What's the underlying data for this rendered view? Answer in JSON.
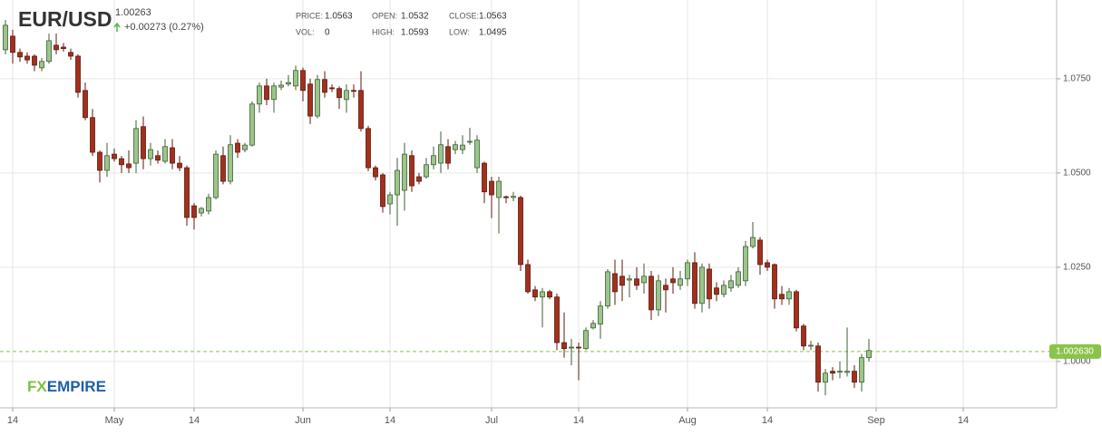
{
  "header": {
    "symbol": "EUR/USD",
    "last": 1.00263,
    "change": "+0.00273 (0.27%)",
    "stats": [
      {
        "label": "PRICE:",
        "value": 1.0563
      },
      {
        "label": "OPEN:",
        "value": 1.0532
      },
      {
        "label": "CLOSE:",
        "value": 1.0563
      },
      {
        "label": "VOL:",
        "value": 0
      },
      {
        "label": "HIGH:",
        "value": 1.0593
      },
      {
        "label": "LOW:",
        "value": 1.0495
      }
    ]
  },
  "brand": {
    "prefix": "FX",
    "name": "EMPIRE"
  },
  "chart_data": {
    "type": "candlestick",
    "up_color": "#9cc58c",
    "down_color": "#a3301c",
    "grid": true,
    "ylim": [
      0.9877,
      1.0959
    ],
    "yticks": [
      {
        "value": 1.075,
        "label": "1.0750"
      },
      {
        "value": 1.05,
        "label": "1.0500"
      },
      {
        "value": 1.025,
        "label": "1.0250"
      },
      {
        "value": 1.0,
        "label": "1.0000"
      }
    ],
    "last_price": {
      "value": 1.00263,
      "label": "1.002630"
    },
    "categories": [
      null,
      "14",
      null,
      null,
      null,
      null,
      null,
      null,
      null,
      null,
      null,
      null,
      null,
      null,
      null,
      "May",
      null,
      null,
      null,
      null,
      null,
      null,
      null,
      null,
      null,
      null,
      "14",
      null,
      null,
      null,
      null,
      null,
      null,
      null,
      null,
      null,
      null,
      null,
      null,
      null,
      null,
      "Jun",
      null,
      null,
      null,
      null,
      null,
      null,
      null,
      null,
      null,
      null,
      null,
      "14",
      null,
      null,
      null,
      null,
      null,
      null,
      null,
      null,
      null,
      null,
      null,
      null,
      null,
      "Jul",
      null,
      null,
      null,
      null,
      null,
      null,
      null,
      null,
      null,
      null,
      null,
      "14",
      null,
      null,
      null,
      null,
      null,
      null,
      null,
      null,
      null,
      null,
      null,
      null,
      null,
      null,
      "Aug",
      null,
      null,
      null,
      null,
      null,
      null,
      null,
      null,
      null,
      null,
      "14",
      null,
      null,
      null,
      null,
      null,
      null,
      null,
      null,
      null,
      null,
      null,
      null,
      null,
      null,
      "Sep",
      null,
      null,
      null,
      null,
      null,
      null,
      null,
      null,
      null,
      null,
      null,
      "14",
      null,
      null,
      null,
      null,
      null,
      null,
      null,
      null,
      null,
      null,
      null,
      null
    ],
    "open": [
      1.0827,
      1.0863,
      1.082,
      1.081,
      1.081,
      1.0779,
      1.0796,
      1.0839,
      1.0834,
      1.082,
      1.081,
      1.0719,
      1.0647,
      1.0555,
      1.0507,
      1.055,
      1.0538,
      1.0524,
      1.0526,
      1.0623,
      1.0538,
      1.0546,
      1.0531,
      1.0567,
      1.0526,
      1.0514,
      1.0413,
      1.0394,
      1.0399,
      1.0435,
      1.0546,
      1.0478,
      1.0579,
      1.0562,
      1.0574,
      1.0683,
      1.0731,
      1.0695,
      1.0728,
      1.0736,
      1.0731,
      1.0772,
      1.0736,
      1.0651,
      1.0748,
      1.0726,
      1.0724,
      1.0695,
      1.0719,
      1.0719,
      1.0618,
      1.0514,
      1.0495,
      1.0418,
      1.0442,
      1.0454,
      1.0546,
      1.049,
      1.049,
      1.0522,
      1.0526,
      1.057,
      1.0562,
      1.0562,
      1.0582,
      1.0514,
      1.0526,
      1.0478,
      1.0435,
      1.0437,
      1.0435,
      1.0435,
      1.0257,
      1.019,
      1.0171,
      1.0185,
      1.0171,
      1.005,
      1.0036,
      1.0038,
      1.0034,
      1.0089,
      1.0099,
      1.0147,
      1.0233,
      1.0226,
      1.0216,
      1.0219,
      1.0209,
      1.0226,
      1.0137,
      1.0202,
      1.0219,
      1.0202,
      1.0219,
      1.0262,
      1.0154,
      1.0245,
      1.0195,
      1.0178,
      1.0195,
      1.0202,
      1.0214,
      1.0305,
      1.0322,
      1.0262,
      1.0257,
      1.0178,
      1.0166,
      1.0185,
      1.0094,
      1.0041,
      1.0041,
      0.9945,
      0.9974,
      0.9972,
      0.9971,
      0.9974,
      0.9945,
      1.001,
      null,
      null,
      null,
      null,
      null,
      null,
      null,
      null,
      null,
      null,
      null,
      null,
      null,
      null,
      null,
      null,
      null,
      null,
      null,
      null,
      null,
      null,
      null,
      null,
      null
    ],
    "high": [
      1.0906,
      1.088,
      1.083,
      1.082,
      1.0815,
      1.0805,
      1.087,
      1.087,
      1.0845,
      1.083,
      1.0815,
      1.074,
      1.067,
      1.056,
      1.058,
      1.0565,
      1.0545,
      1.056,
      1.064,
      1.065,
      1.058,
      1.056,
      1.059,
      1.059,
      1.0545,
      1.052,
      1.042,
      1.041,
      1.0445,
      1.056,
      1.057,
      1.06,
      1.059,
      1.058,
      1.069,
      1.074,
      1.075,
      1.074,
      1.0745,
      1.076,
      1.0785,
      1.078,
      1.075,
      1.076,
      1.077,
      1.0735,
      1.073,
      1.0735,
      1.0735,
      1.077,
      1.0625,
      1.052,
      1.05,
      1.045,
      1.054,
      1.058,
      1.056,
      1.05,
      1.054,
      1.057,
      1.061,
      1.059,
      1.0585,
      1.06,
      1.062,
      1.06,
      1.053,
      1.049,
      1.049,
      1.044,
      1.045,
      1.044,
      1.027,
      1.02,
      1.0195,
      1.019,
      1.018,
      1.013,
      1.006,
      1.005,
      1.009,
      1.011,
      1.016,
      1.0245,
      1.027,
      1.027,
      1.023,
      1.025,
      1.026,
      1.024,
      1.023,
      1.022,
      1.025,
      1.024,
      1.027,
      1.029,
      1.026,
      1.026,
      1.021,
      1.0215,
      1.023,
      1.025,
      1.032,
      1.037,
      1.033,
      1.027,
      1.026,
      1.02,
      1.0195,
      1.019,
      1.01,
      1.0055,
      1.005,
      0.998,
      0.9985,
      1.0,
      1.009,
      0.999,
      1.002,
      1.006,
      null,
      null,
      null,
      null,
      null,
      null,
      null,
      null,
      null,
      null,
      null,
      null,
      null,
      null,
      null,
      null,
      null,
      null,
      null,
      null,
      null,
      null,
      null,
      null,
      null
    ],
    "low": [
      1.0815,
      1.079,
      1.0795,
      1.079,
      1.077,
      1.077,
      1.079,
      1.0815,
      1.0822,
      1.08,
      1.07,
      1.064,
      1.0545,
      1.0475,
      1.049,
      1.053,
      1.05,
      1.05,
      1.05,
      1.051,
      1.052,
      1.0525,
      1.0525,
      1.051,
      1.0505,
      1.036,
      1.035,
      1.0385,
      1.039,
      1.043,
      1.047,
      1.047,
      1.054,
      1.0555,
      1.057,
      1.066,
      1.068,
      1.066,
      1.072,
      1.073,
      1.072,
      1.069,
      1.063,
      1.0645,
      1.07,
      1.0715,
      1.067,
      1.066,
      1.07,
      1.061,
      1.0505,
      1.048,
      1.0395,
      1.039,
      1.036,
      1.04,
      1.045,
      1.047,
      1.0485,
      1.051,
      1.05,
      1.051,
      1.055,
      1.055,
      1.0575,
      1.05,
      1.042,
      1.038,
      1.034,
      1.042,
      1.0425,
      1.024,
      1.018,
      1.016,
      1.009,
      1.0165,
      1.003,
      1.001,
      0.999,
      0.995,
      1.003,
      1.0085,
      1.006,
      1.014,
      1.015,
      1.016,
      1.017,
      1.019,
      1.018,
      1.011,
      1.012,
      1.013,
      1.018,
      1.019,
      1.02,
      1.014,
      1.013,
      1.014,
      1.016,
      1.017,
      1.0185,
      1.0195,
      1.02,
      1.03,
      1.023,
      1.024,
      1.014,
      1.015,
      1.015,
      1.008,
      1.003,
      1.003,
      0.992,
      0.991,
      0.995,
      0.9955,
      0.996,
      0.993,
      0.992,
      1.0,
      null,
      null,
      null,
      null,
      null,
      null,
      null,
      null,
      null,
      null,
      null,
      null,
      null,
      null,
      null,
      null,
      null,
      null,
      null,
      null,
      null,
      null,
      null,
      null,
      null
    ],
    "close": [
      1.0892,
      1.082,
      1.0808,
      1.08,
      1.0786,
      1.0796,
      1.0851,
      1.0827,
      1.083,
      1.081,
      1.0714,
      1.0647,
      1.0555,
      1.0507,
      1.0546,
      1.0538,
      1.0522,
      1.0514,
      1.0618,
      1.0538,
      1.0562,
      1.0534,
      1.057,
      1.0526,
      1.0514,
      1.0382,
      1.0382,
      1.0406,
      1.0435,
      1.055,
      1.0478,
      1.0575,
      1.0555,
      1.0574,
      1.0683,
      1.0731,
      1.0695,
      1.0731,
      1.0733,
      1.074,
      1.0772,
      1.0719,
      1.0651,
      1.0748,
      1.0714,
      1.0724,
      1.07,
      1.0719,
      1.0717,
      1.0618,
      1.0514,
      1.049,
      1.0411,
      1.0442,
      1.0507,
      1.055,
      1.0466,
      1.0478,
      1.0522,
      1.0546,
      1.0575,
      1.0526,
      1.0575,
      1.0574,
      1.0584,
      1.0587,
      1.045,
      1.0442,
      1.0478,
      1.0435,
      1.0438,
      1.0257,
      1.0185,
      1.0171,
      1.0185,
      1.0171,
      1.005,
      1.0034,
      1.0038,
      1.0036,
      1.0082,
      1.0101,
      1.0147,
      1.0238,
      1.0185,
      1.0202,
      1.0219,
      1.0202,
      1.0226,
      1.0137,
      1.0214,
      1.019,
      1.0209,
      1.0219,
      1.0262,
      1.0154,
      1.025,
      1.0166,
      1.0178,
      1.0202,
      1.0214,
      1.0238,
      1.0305,
      1.0329,
      1.0257,
      1.025,
      1.0166,
      1.0166,
      1.0185,
      1.0089,
      1.0041,
      1.0043,
      0.9945,
      0.9969,
      0.9969,
      0.9974,
      0.9974,
      0.9945,
      1.001,
      1.0029,
      null,
      null,
      null,
      null,
      null,
      null,
      null,
      null,
      null,
      null,
      null,
      null,
      null,
      null,
      null,
      null,
      null,
      null,
      null,
      null,
      null,
      null,
      null,
      null,
      null
    ]
  }
}
